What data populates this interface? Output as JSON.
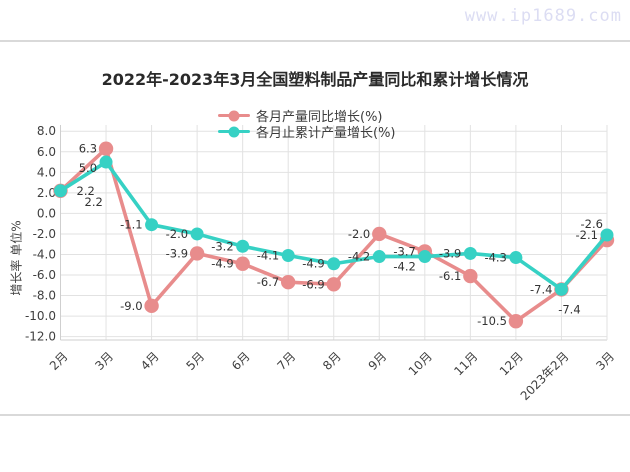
{
  "watermark": {
    "text": "www.ip1689.com",
    "color": "#dcddf3"
  },
  "chart_data": {
    "type": "line",
    "title": "2022年-2023年3月全国塑料制品产量同比和累计增长情况",
    "ylabel": "增长率 单位%",
    "xlabel": "",
    "categories": [
      "2月",
      "3月",
      "4月",
      "5月",
      "6月",
      "7月",
      "8月",
      "9月",
      "10月",
      "11月",
      "12月",
      "2023年2月",
      "3月"
    ],
    "y_ticks": [
      "8.0",
      "6.0",
      "4.0",
      "2.0",
      "0.0",
      "-2.0",
      "-4.0",
      "-6.0",
      "-8.0",
      "-10.0",
      "-12.0"
    ],
    "ylim": [
      -12,
      8
    ],
    "grid": true,
    "legend_position": "top-center",
    "series": [
      {
        "name": "各月产量同比增长(%)",
        "color": "#e88c8c",
        "values": [
          2.2,
          6.3,
          -9.0,
          -3.9,
          -4.9,
          -6.7,
          -6.9,
          -2.0,
          -3.7,
          -6.1,
          -10.5,
          -7.4,
          -2.6
        ]
      },
      {
        "name": "各月止累计产量增长(%)",
        "color": "#36d1c4",
        "values": [
          2.2,
          5.0,
          -1.1,
          -2.0,
          -3.2,
          -4.1,
          -4.9,
          -4.2,
          -4.2,
          -3.9,
          -4.3,
          -7.4,
          -2.1
        ]
      }
    ]
  }
}
